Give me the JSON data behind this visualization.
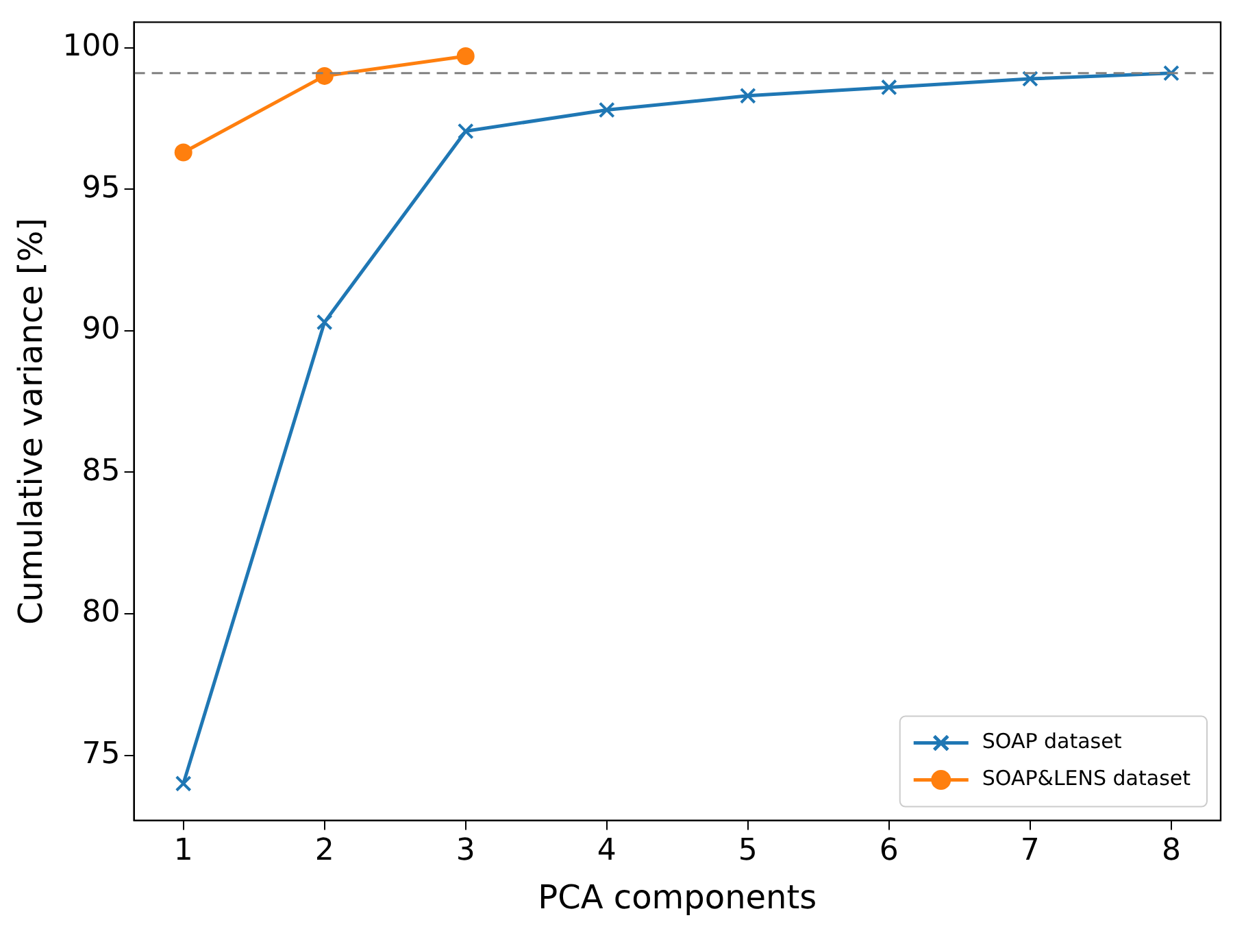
{
  "chart_data": {
    "type": "line",
    "xlabel": "PCA components",
    "ylabel": "Cumulative variance [%]",
    "x": [
      1,
      2,
      3,
      4,
      5,
      6,
      7,
      8
    ],
    "series": [
      {
        "name": "SOAP dataset",
        "color": "#1f77b4",
        "marker": "cross",
        "values": [
          74.0,
          90.3,
          97.05,
          97.8,
          98.3,
          98.6,
          98.9,
          99.1
        ]
      },
      {
        "name": "SOAP&LENS dataset",
        "color": "#ff7f0e",
        "marker": "circle",
        "x": [
          1,
          2,
          3
        ],
        "values": [
          96.3,
          99.0,
          99.7
        ]
      }
    ],
    "xlim": [
      0.65,
      8.35
    ],
    "xticks": [
      1,
      2,
      3,
      4,
      5,
      6,
      7,
      8
    ],
    "ylim": [
      72.7,
      100.9
    ],
    "yticks": [
      75,
      80,
      85,
      90,
      95,
      100
    ],
    "ref_lines": [
      {
        "axis": "y",
        "value": 99.1,
        "color": "#808080",
        "line_style": "dashed"
      }
    ],
    "grid": false,
    "legend": "bottom right",
    "line_style": "solid"
  }
}
